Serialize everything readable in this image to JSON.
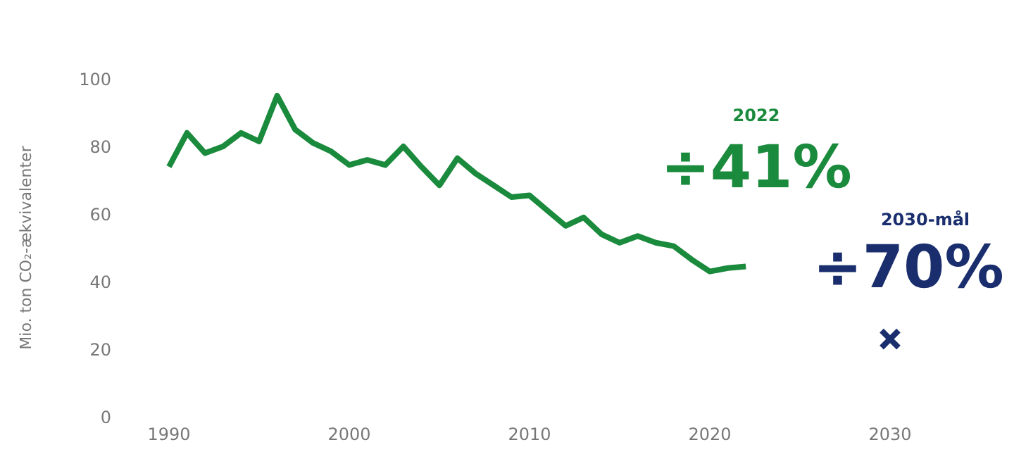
{
  "chart_data": {
    "type": "line",
    "ylabel": "Mio. ton CO₂-ækvivalenter",
    "xlim": [
      1990,
      2030
    ],
    "xticks": [
      1990,
      2000,
      2010,
      2020,
      2030
    ],
    "ylim": [
      0,
      100
    ],
    "yticks": [
      0,
      20,
      40,
      60,
      80,
      100
    ],
    "grid": false,
    "series": [
      {
        "color": "#1a8a3c",
        "marker": "none",
        "x": [
          1990,
          1991,
          1992,
          1993,
          1994,
          1995,
          1996,
          1997,
          1998,
          1999,
          2000,
          2001,
          2002,
          2003,
          2004,
          2005,
          2006,
          2007,
          2008,
          2009,
          2010,
          2011,
          2012,
          2013,
          2014,
          2015,
          2016,
          2017,
          2018,
          2019,
          2020,
          2021,
          2022
        ],
        "values": [
          74,
          84,
          78,
          80,
          84,
          81.5,
          95,
          85,
          81,
          78.5,
          74.5,
          76,
          74.5,
          80,
          74,
          68.5,
          76.5,
          72,
          68.5,
          65,
          65.5,
          61,
          56.5,
          59,
          54,
          51.5,
          53.5,
          51.5,
          50.5,
          46.5,
          43,
          44,
          44.5
        ]
      },
      {
        "type": "scatter",
        "color": "#1a2e6e",
        "marker": "cross",
        "x": [
          2030
        ],
        "values": [
          23
        ]
      }
    ],
    "annotations": [
      "2022",
      "÷41%",
      "2030-mål",
      "÷70%"
    ]
  }
}
